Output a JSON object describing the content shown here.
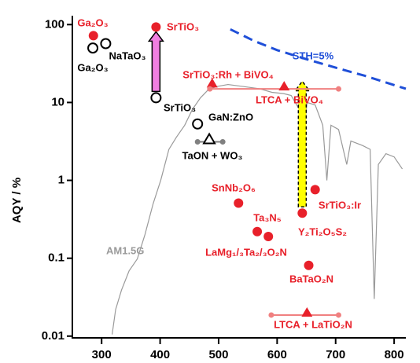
{
  "chart_data": {
    "type": "scatter",
    "ylabel": "AQY / %",
    "log_y": true,
    "xlim": [
      250,
      820
    ],
    "ylim": [
      0.0095,
      130
    ],
    "xticks": [
      300,
      400,
      500,
      600,
      700,
      800
    ],
    "yticks": [
      0.01,
      0.1,
      1,
      10,
      100
    ],
    "spectrum": {
      "name": "AM1.5G",
      "color": "#9a9a9a",
      "x": [
        318,
        324,
        334,
        347,
        361,
        374,
        388,
        401,
        415,
        428,
        442,
        455,
        469,
        482,
        496,
        516,
        543,
        570,
        591,
        611,
        624,
        638,
        645,
        651,
        665,
        678,
        685,
        692,
        705,
        719,
        726,
        746,
        759,
        766,
        773,
        786,
        800,
        814
      ],
      "values": [
        0.0105,
        0.022,
        0.039,
        0.069,
        0.098,
        0.2,
        0.5,
        1,
        2.5,
        3.6,
        5.1,
        8.1,
        11.5,
        14.5,
        16,
        17,
        16,
        15,
        13.5,
        13,
        12.3,
        8.1,
        3.2,
        10,
        9.3,
        5.1,
        1,
        5.1,
        4.5,
        1.6,
        3.2,
        2.8,
        2.5,
        0.03,
        1.6,
        2.2,
        2,
        1.4
      ]
    },
    "sth": {
      "name": "STH=5%",
      "color": "#1f4fd8",
      "x": [
        520,
        560,
        600,
        650,
        700,
        750,
        820
      ],
      "values": [
        87,
        62,
        47,
        36,
        28,
        22,
        15
      ]
    },
    "points": [
      {
        "label": "Ga₂O₃",
        "x": 286,
        "value": 72,
        "marker": "circle-filled",
        "color": "#e8202a"
      },
      {
        "label": "SrTiO₃",
        "x": 393,
        "value": 93,
        "marker": "circle-filled",
        "color": "#e8202a"
      },
      {
        "label": "Ga₂O₃",
        "x": 285,
        "value": 50,
        "marker": "circle-open",
        "color": "#000000"
      },
      {
        "label": "NaTaO₃",
        "x": 307,
        "value": 57,
        "marker": "circle-open",
        "color": "#000000"
      },
      {
        "label": "SrTiO₃",
        "x": 393,
        "value": 11.5,
        "marker": "circle-open",
        "color": "#000000"
      },
      {
        "label": "GaN:ZnO",
        "x": 464,
        "value": 5.3,
        "marker": "circle-open",
        "color": "#000000"
      },
      {
        "label": "TaON + WO₃",
        "x": 484,
        "value": 3.35,
        "marker": "triangle-open",
        "color": "#000000",
        "x_range": [
          464,
          507
        ],
        "range_color": "#808080"
      },
      {
        "label": "SrTiO₃:Rh + BiVO₄",
        "x": 489,
        "value": 17.5,
        "marker": "triangle-filled",
        "color": "#e8202a"
      },
      {
        "label": "LTCA + BiVO₄",
        "x": 612,
        "value": 16,
        "marker": "triangle-filled",
        "color": "#e8202a",
        "x_range": [
          485,
          705
        ],
        "range_color": "#f08080"
      },
      {
        "label": "SnNb₂O₆",
        "x": 534,
        "value": 0.51,
        "marker": "circle-filled",
        "color": "#e8202a"
      },
      {
        "label": "Ta₃N₅",
        "x": 566,
        "value": 0.22,
        "marker": "circle-filled",
        "color": "#e8202a"
      },
      {
        "label": "LaMg₁/₃Ta₂/₃O₂N",
        "x": 585,
        "value": 0.19,
        "marker": "circle-filled",
        "color": "#e8202a"
      },
      {
        "label": "Y₂Ti₂O₅S₂",
        "x": 643,
        "value": 0.38,
        "marker": "circle-filled",
        "color": "#e8202a"
      },
      {
        "label": "SrTiO₃:Ir",
        "x": 665,
        "value": 0.76,
        "marker": "circle-filled",
        "color": "#e8202a"
      },
      {
        "label": "BaTaO₂N",
        "x": 654,
        "value": 0.081,
        "marker": "circle-filled",
        "color": "#e8202a"
      },
      {
        "label": "LTCA + LaTiO₂N",
        "x": 651,
        "value": 0.02,
        "marker": "triangle-filled",
        "color": "#e8202a",
        "x_range": [
          590,
          705
        ],
        "range_color": "#f08080"
      }
    ],
    "arrows": [
      {
        "x": 393,
        "from": 11.5,
        "to": 93,
        "color": "#f07ee0",
        "dashed": false
      },
      {
        "x": 643,
        "from": 0.38,
        "to": 21.5,
        "color": "#ffff00",
        "dashed": true
      }
    ]
  }
}
